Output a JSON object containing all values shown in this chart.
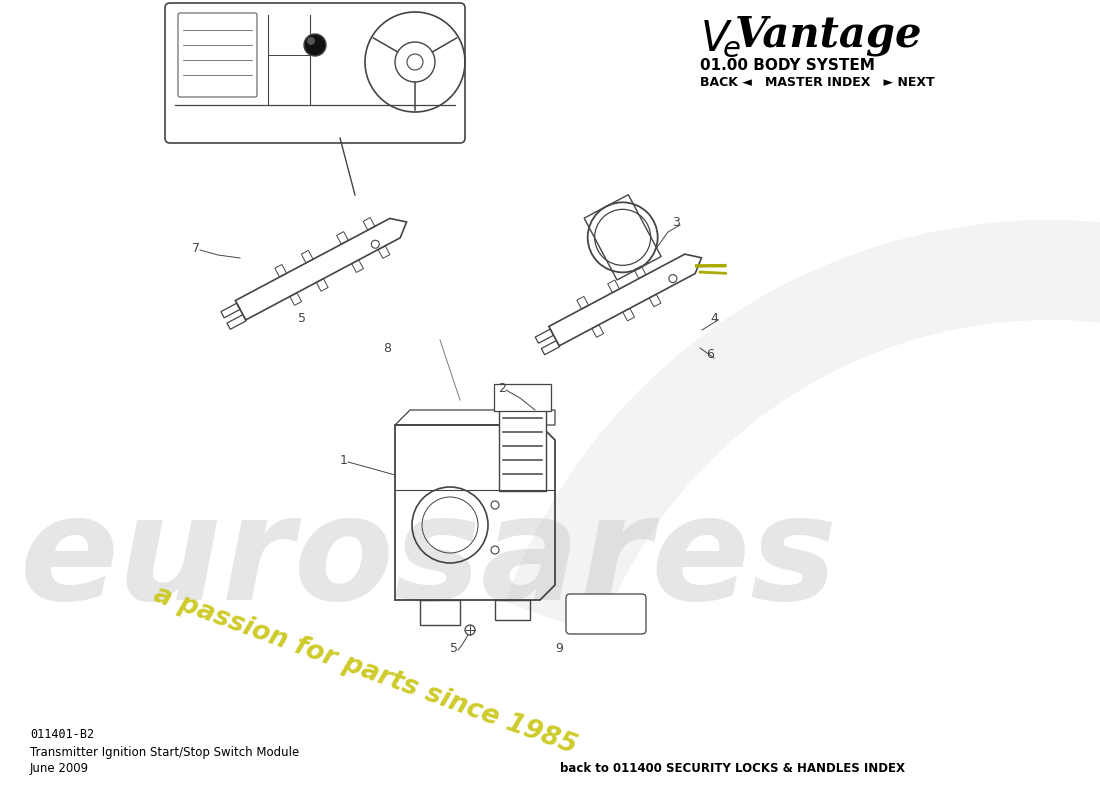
{
  "bg_color": "#ffffff",
  "lc": "#444444",
  "title_system": "01.00 BODY SYSTEM",
  "title_nav": "BACK ◄   MASTER INDEX   ► NEXT",
  "part_code": "011401-B2",
  "part_name": "Transmitter Ignition Start/Stop Switch Module",
  "part_date": "June 2009",
  "back_link": "back to 011400 SECURITY LOCKS & HANDLES INDEX",
  "wm_color": "#c8c8c8",
  "wm_yellow": "#ccc820",
  "yellow_wire": "#aaaa00",
  "dash_line": "#555555"
}
